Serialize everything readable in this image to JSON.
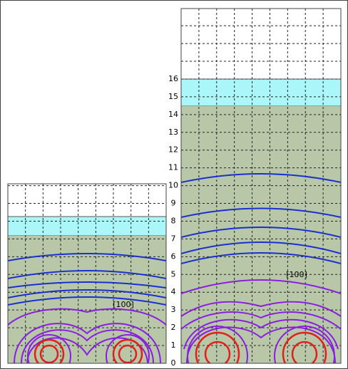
{
  "left_panel": {
    "label": "[100]"
  },
  "right_panel": {
    "label": "[100]"
  },
  "axis": {
    "ticks": [
      0,
      1,
      2,
      3,
      4,
      5,
      6,
      7,
      8,
      9,
      10,
      11,
      12,
      13,
      14,
      15,
      16
    ]
  }
}
